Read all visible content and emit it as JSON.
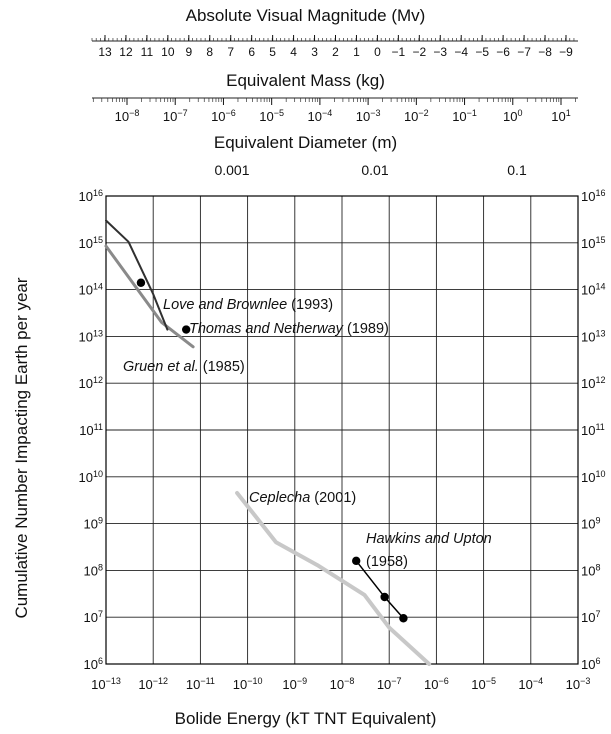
{
  "chart_data": {
    "type": "line",
    "top_axes": [
      {
        "title": "Absolute Visual Magnitude (Mv)",
        "tick_labels": [
          "13",
          "12",
          "11",
          "10",
          "9",
          "8",
          "7",
          "6",
          "5",
          "4",
          "3",
          "2",
          "1",
          "0",
          "−1",
          "−2",
          "−3",
          "−4",
          "−5",
          "−6",
          "−7",
          "−8",
          "−9"
        ]
      },
      {
        "title": "Equivalent Mass (kg)",
        "tick_labels": [
          {
            "base": "10",
            "exp": "−8"
          },
          {
            "base": "10",
            "exp": "−7"
          },
          {
            "base": "10",
            "exp": "−6"
          },
          {
            "base": "10",
            "exp": "−5"
          },
          {
            "base": "10",
            "exp": "−4"
          },
          {
            "base": "10",
            "exp": "−3"
          },
          {
            "base": "10",
            "exp": "−2"
          },
          {
            "base": "10",
            "exp": "−1"
          },
          {
            "base": "10",
            "exp": "0"
          },
          {
            "base": "10",
            "exp": "1"
          }
        ]
      },
      {
        "title": "Equivalent Diameter (m)",
        "tick_labels": [
          "0.001",
          "0.01",
          "0.1"
        ]
      }
    ],
    "xlabel": "Bolide Energy (kT TNT Equivalent)",
    "ylabel": "Cumulative Number Impacting Earth per year",
    "x_scale": "log",
    "y_scale": "log",
    "xlim": [
      1e-13,
      0.001
    ],
    "ylim": [
      1000000.0,
      1e+16
    ],
    "x_ticks": [
      {
        "base": "10",
        "exp": "−13"
      },
      {
        "base": "10",
        "exp": "−12"
      },
      {
        "base": "10",
        "exp": "−11"
      },
      {
        "base": "10",
        "exp": "−10"
      },
      {
        "base": "10",
        "exp": "−9"
      },
      {
        "base": "10",
        "exp": "−8"
      },
      {
        "base": "10",
        "exp": "−7"
      },
      {
        "base": "10",
        "exp": "−6"
      },
      {
        "base": "10",
        "exp": "−5"
      },
      {
        "base": "10",
        "exp": "−4"
      },
      {
        "base": "10",
        "exp": "−3"
      }
    ],
    "y_ticks": [
      {
        "base": "10",
        "exp": "16"
      },
      {
        "base": "10",
        "exp": "15"
      },
      {
        "base": "10",
        "exp": "14"
      },
      {
        "base": "10",
        "exp": "13"
      },
      {
        "base": "10",
        "exp": "12"
      },
      {
        "base": "10",
        "exp": "11"
      },
      {
        "base": "10",
        "exp": "10"
      },
      {
        "base": "10",
        "exp": "9"
      },
      {
        "base": "10",
        "exp": "8"
      },
      {
        "base": "10",
        "exp": "7"
      },
      {
        "base": "10",
        "exp": "6"
      }
    ],
    "grid": true,
    "series": [
      {
        "name": "Gruen et al. (1985)",
        "color": "#8a8a8a",
        "points": [
          [
            1e-13,
            850000000000000.0
          ],
          [
            1.5e-12,
            20000000000000.0
          ],
          [
            7e-12,
            6000000000000.0
          ]
        ]
      },
      {
        "name": "Love and Brownlee (1993)",
        "color": "#303030",
        "points": [
          [
            1e-13,
            3000000000000000.0
          ],
          [
            3e-13,
            1050000000000000.0
          ],
          [
            1e-12,
            80000000000000.0
          ],
          [
            2e-12,
            14000000000000.0
          ]
        ]
      },
      {
        "name": "Thomas and Netherway (1989)",
        "color": "#000000",
        "markers": [
          [
            5.5e-13,
            140000000000000.0
          ],
          [
            5e-12,
            14000000000000.0
          ]
        ]
      },
      {
        "name": "Ceplecha (2001)",
        "color": "#c8c8c8",
        "points": [
          [
            6e-11,
            4500000000.0
          ],
          [
            4e-10,
            400000000.0
          ],
          [
            3e-09,
            130000000.0
          ],
          [
            3e-08,
            30000000.0
          ],
          [
            1e-07,
            6000000.0
          ],
          [
            7e-07,
            1000000.0
          ]
        ]
      },
      {
        "name": "Hawkins and Upton (1958)",
        "color": "#000000",
        "points": [
          [
            2e-08,
            160000000.0
          ],
          [
            8e-08,
            27000000.0
          ],
          [
            2e-07,
            9500000.0
          ]
        ],
        "markers": [
          [
            2e-08,
            160000000.0
          ],
          [
            8e-08,
            27000000.0
          ],
          [
            2e-07,
            9500000.0
          ]
        ]
      }
    ],
    "annotations": [
      {
        "key": "love",
        "italic": "Love and Brownlee",
        "rest": " (1993)"
      },
      {
        "key": "thomas",
        "italic": "Thomas and Netherway",
        "rest": " (1989)"
      },
      {
        "key": "gruen",
        "italic": "Gruen et al.",
        "rest": " (1985)"
      },
      {
        "key": "ceplecha",
        "italic": "Ceplecha",
        "rest": " (2001)"
      },
      {
        "key": "hawkins1",
        "italic": "Hawkins and Upton",
        "rest": ""
      },
      {
        "key": "hawkins2",
        "italic": "",
        "rest": "(1958)"
      }
    ]
  }
}
